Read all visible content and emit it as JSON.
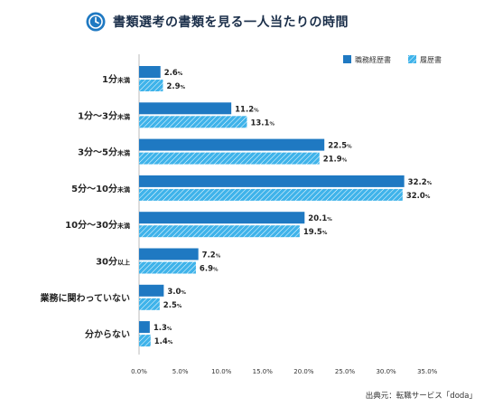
{
  "title": "書類選考の書類を見る一人当たりの時間",
  "source": "出典元：転職サービス「doda」",
  "colors": {
    "series1": "#1f79c2",
    "series2": "#3fb3ea",
    "title": "#1b2f4a",
    "icon": "#1f79c2"
  },
  "icons": {
    "title": "clock-icon"
  },
  "chart_data": {
    "type": "bar",
    "orientation": "horizontal",
    "categories": [
      {
        "main": "1分",
        "suffix": "未満"
      },
      {
        "main": "1分〜3分",
        "suffix": "未満"
      },
      {
        "main": "3分〜5分",
        "suffix": "未満"
      },
      {
        "main": "5分〜10分",
        "suffix": "未満"
      },
      {
        "main": "10分〜30分",
        "suffix": "未満"
      },
      {
        "main": "30分",
        "suffix": "以上"
      },
      {
        "main": "業務に関わっていない",
        "suffix": ""
      },
      {
        "main": "分からない",
        "suffix": ""
      }
    ],
    "series": [
      {
        "name": "職務経歴書",
        "values": [
          2.6,
          11.2,
          22.5,
          32.2,
          20.1,
          7.2,
          3.0,
          1.3
        ],
        "pattern": "solid"
      },
      {
        "name": "履歴書",
        "values": [
          2.9,
          13.1,
          21.9,
          32.0,
          19.5,
          6.9,
          2.5,
          1.4
        ],
        "pattern": "hatched"
      }
    ],
    "value_unit": "%",
    "xlim": [
      0,
      35
    ],
    "xticks": [
      "0.0%",
      "5.0%",
      "10.0%",
      "15.0%",
      "20.0%",
      "25.0%",
      "30.0%",
      "35.0%"
    ],
    "legend_position": "top-right",
    "grid": false
  }
}
